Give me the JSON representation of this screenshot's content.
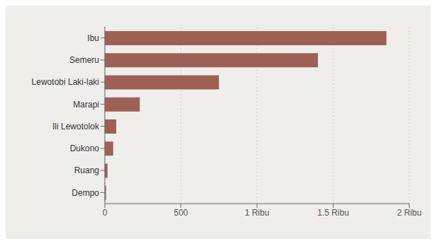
{
  "chart_data": {
    "type": "bar",
    "orientation": "horizontal",
    "categories": [
      "Dempo",
      "Ruang",
      "Dukono",
      "Ili Lewotolok",
      "Marapi",
      "Lewotobi Laki-laki",
      "Semeru",
      "Ibu"
    ],
    "values": [
      8,
      18,
      55,
      75,
      230,
      750,
      1400,
      1850
    ],
    "color": "#9e6055",
    "xlim": [
      0,
      2000
    ],
    "xticks": [
      0,
      500,
      {
        "value": 1000,
        "label": "1 Ribu"
      },
      {
        "value": 1500,
        "label": "1.5 Ribu"
      },
      {
        "value": 2000,
        "label": "2 Ribu"
      }
    ],
    "grid": true
  }
}
